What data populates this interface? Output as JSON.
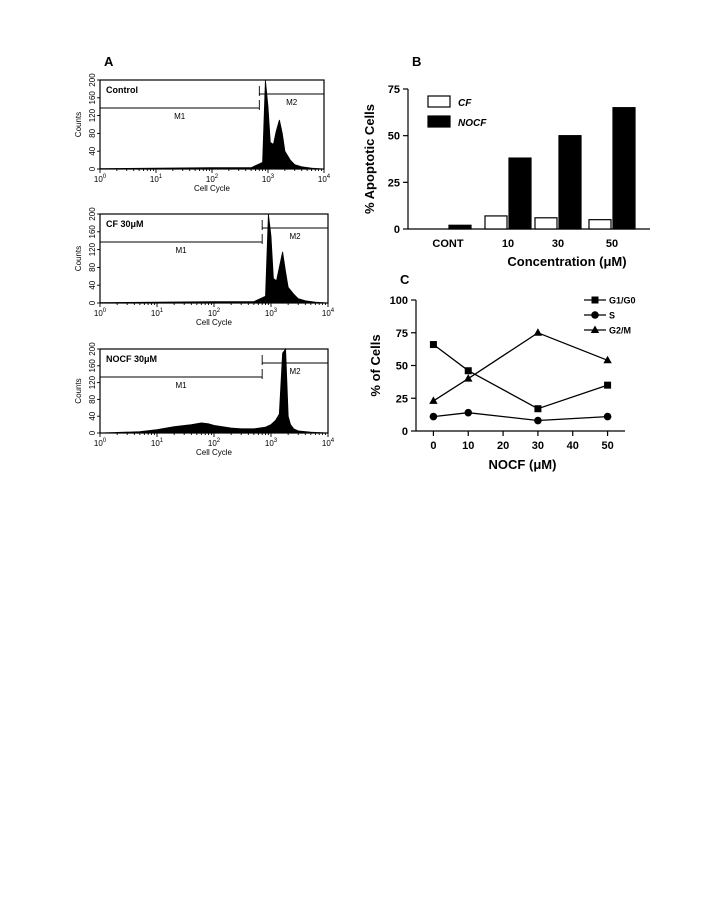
{
  "panel_labels": {
    "A": "A",
    "B": "B",
    "C": "C"
  },
  "chart_data": [
    {
      "type": "area",
      "panel": "A",
      "title": "Control",
      "xlabel": "Cell Cycle",
      "ylabel": "Counts",
      "xscale": "log",
      "xlim": [
        1,
        10000
      ],
      "ylim": [
        0,
        200
      ],
      "xticks": [
        "10^0",
        "10^1",
        "10^2",
        "10^3",
        "10^4"
      ],
      "yticks": [
        "0",
        "40",
        "80",
        "120",
        "160",
        "200"
      ],
      "gates": [
        {
          "label": "M1",
          "range": [
            1,
            700
          ]
        },
        {
          "label": "M2",
          "range": [
            700,
            10000
          ]
        }
      ],
      "x": [
        1,
        10,
        100,
        500,
        800,
        900,
        1000,
        1100,
        1250,
        1400,
        1600,
        1800,
        2000,
        2500,
        3000,
        4000,
        6000,
        10000
      ],
      "values": [
        1,
        2,
        3,
        3,
        15,
        210,
        140,
        60,
        55,
        85,
        110,
        80,
        40,
        20,
        10,
        5,
        2,
        0
      ]
    },
    {
      "type": "area",
      "panel": "A",
      "title": "CF 30μM",
      "xlabel": "Cell Cycle",
      "ylabel": "Counts",
      "xscale": "log",
      "xlim": [
        1,
        10000
      ],
      "ylim": [
        0,
        200
      ],
      "xticks": [
        "10^0",
        "10^1",
        "10^2",
        "10^3",
        "10^4"
      ],
      "yticks": [
        "0",
        "40",
        "80",
        "120",
        "160",
        "200"
      ],
      "gates": [
        {
          "label": "M1",
          "range": [
            1,
            700
          ]
        },
        {
          "label": "M2",
          "range": [
            700,
            10000
          ]
        }
      ],
      "x": [
        1,
        10,
        100,
        500,
        800,
        900,
        1000,
        1100,
        1250,
        1400,
        1600,
        1800,
        2000,
        2500,
        3000,
        4000,
        6000,
        10000
      ],
      "values": [
        1,
        2,
        3,
        3,
        15,
        200,
        150,
        55,
        50,
        80,
        115,
        70,
        35,
        20,
        10,
        5,
        2,
        0
      ]
    },
    {
      "type": "area",
      "panel": "A",
      "title": "NOCF 30μM",
      "xlabel": "Cell Cycle",
      "ylabel": "Counts",
      "xscale": "log",
      "xlim": [
        1,
        10000
      ],
      "ylim": [
        0,
        200
      ],
      "xticks": [
        "10^0",
        "10^1",
        "10^2",
        "10^3",
        "10^4"
      ],
      "yticks": [
        "0",
        "40",
        "80",
        "120",
        "160",
        "200"
      ],
      "gates": [
        {
          "label": "M1",
          "range": [
            1,
            700
          ]
        },
        {
          "label": "M2",
          "range": [
            700,
            10000
          ]
        }
      ],
      "x": [
        1,
        5,
        10,
        20,
        40,
        60,
        80,
        100,
        200,
        300,
        500,
        800,
        1000,
        1200,
        1400,
        1600,
        1800,
        2000,
        2200,
        2500,
        3000,
        5000,
        10000
      ],
      "values": [
        0,
        3,
        8,
        15,
        20,
        24,
        22,
        18,
        12,
        10,
        10,
        14,
        20,
        30,
        45,
        190,
        210,
        40,
        20,
        10,
        5,
        2,
        0
      ]
    },
    {
      "type": "bar",
      "panel": "B",
      "xlabel": "Concentration (μM)",
      "ylabel": "% Apoptotic Cells",
      "categories": [
        "CONT",
        "10",
        "30",
        "50"
      ],
      "ylim": [
        0,
        75
      ],
      "yticks": [
        "0",
        "25",
        "50",
        "75"
      ],
      "legend_position": "top-left",
      "series": [
        {
          "name": "CF",
          "color": "#ffffff",
          "values": [
            0,
            7,
            6,
            5
          ]
        },
        {
          "name": "NOCF",
          "color": "#000000",
          "values": [
            2,
            38,
            50,
            65
          ]
        }
      ]
    },
    {
      "type": "line",
      "panel": "C",
      "xlabel": "NOCF (μM)",
      "ylabel": "% of Cells",
      "x": [
        0,
        10,
        30,
        50
      ],
      "xlim": [
        -5,
        55
      ],
      "ylim": [
        0,
        100
      ],
      "xticks": [
        "0",
        "10",
        "20",
        "30",
        "40",
        "50"
      ],
      "yticks": [
        "0",
        "25",
        "50",
        "75",
        "100"
      ],
      "legend_position": "top-right",
      "series": [
        {
          "name": "G1/G0",
          "marker": "square",
          "values": [
            66,
            46,
            17,
            35
          ]
        },
        {
          "name": "S",
          "marker": "circle",
          "values": [
            11,
            14,
            8,
            11
          ]
        },
        {
          "name": "G2/M",
          "marker": "triangle",
          "values": [
            23,
            40,
            75,
            54
          ]
        }
      ]
    }
  ]
}
